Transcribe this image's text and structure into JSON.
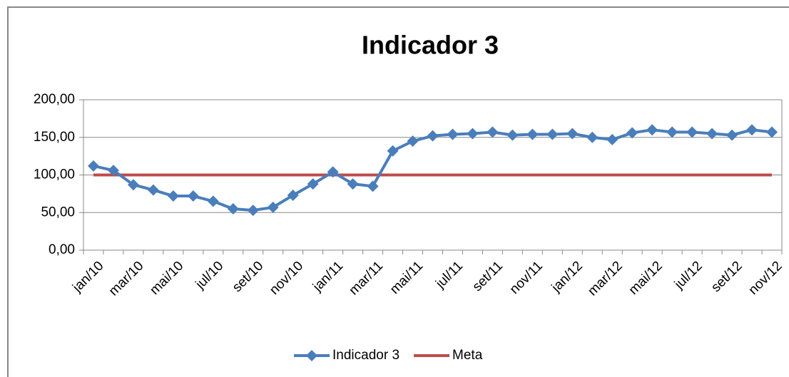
{
  "chart_data": {
    "type": "line",
    "title": "Indicador 3",
    "categories": [
      "jan/10",
      null,
      "mar/10",
      null,
      "mai/10",
      null,
      "jul/10",
      null,
      "set/10",
      null,
      "nov/10",
      null,
      "jan/11",
      null,
      "mar/11",
      null,
      "mai/11",
      null,
      "jul/11",
      null,
      "set/11",
      null,
      "nov/11",
      null,
      "jan/12",
      null,
      "mar/12",
      null,
      "mai/12",
      null,
      "jul/12",
      null,
      "set/12",
      null,
      "nov/12"
    ],
    "series": [
      {
        "name": "Indicador 3",
        "color": "#4a7ebb",
        "marker": "diamond",
        "values": [
          112,
          106,
          87,
          80,
          72,
          72,
          65,
          55,
          53,
          57,
          73,
          88,
          104,
          88,
          85,
          132,
          145,
          152,
          154,
          155,
          157,
          153,
          154,
          154,
          155,
          150,
          147,
          156,
          160,
          157,
          157,
          155,
          153,
          160,
          157
        ]
      },
      {
        "name": "Meta",
        "color": "#be4b48",
        "values": [
          100,
          100,
          100,
          100,
          100,
          100,
          100,
          100,
          100,
          100,
          100,
          100,
          100,
          100,
          100,
          100,
          100,
          100,
          100,
          100,
          100,
          100,
          100,
          100,
          100,
          100,
          100,
          100,
          100,
          100,
          100,
          100,
          100,
          100,
          100
        ]
      }
    ],
    "ylim": [
      0,
      200
    ],
    "yticks": [
      {
        "value": 0,
        "label": "0,00"
      },
      {
        "value": 50,
        "label": "50,00"
      },
      {
        "value": 100,
        "label": "100,00"
      },
      {
        "value": 150,
        "label": "150,00"
      },
      {
        "value": 200,
        "label": "200,00"
      }
    ],
    "grid": true,
    "legend": "bottom"
  }
}
